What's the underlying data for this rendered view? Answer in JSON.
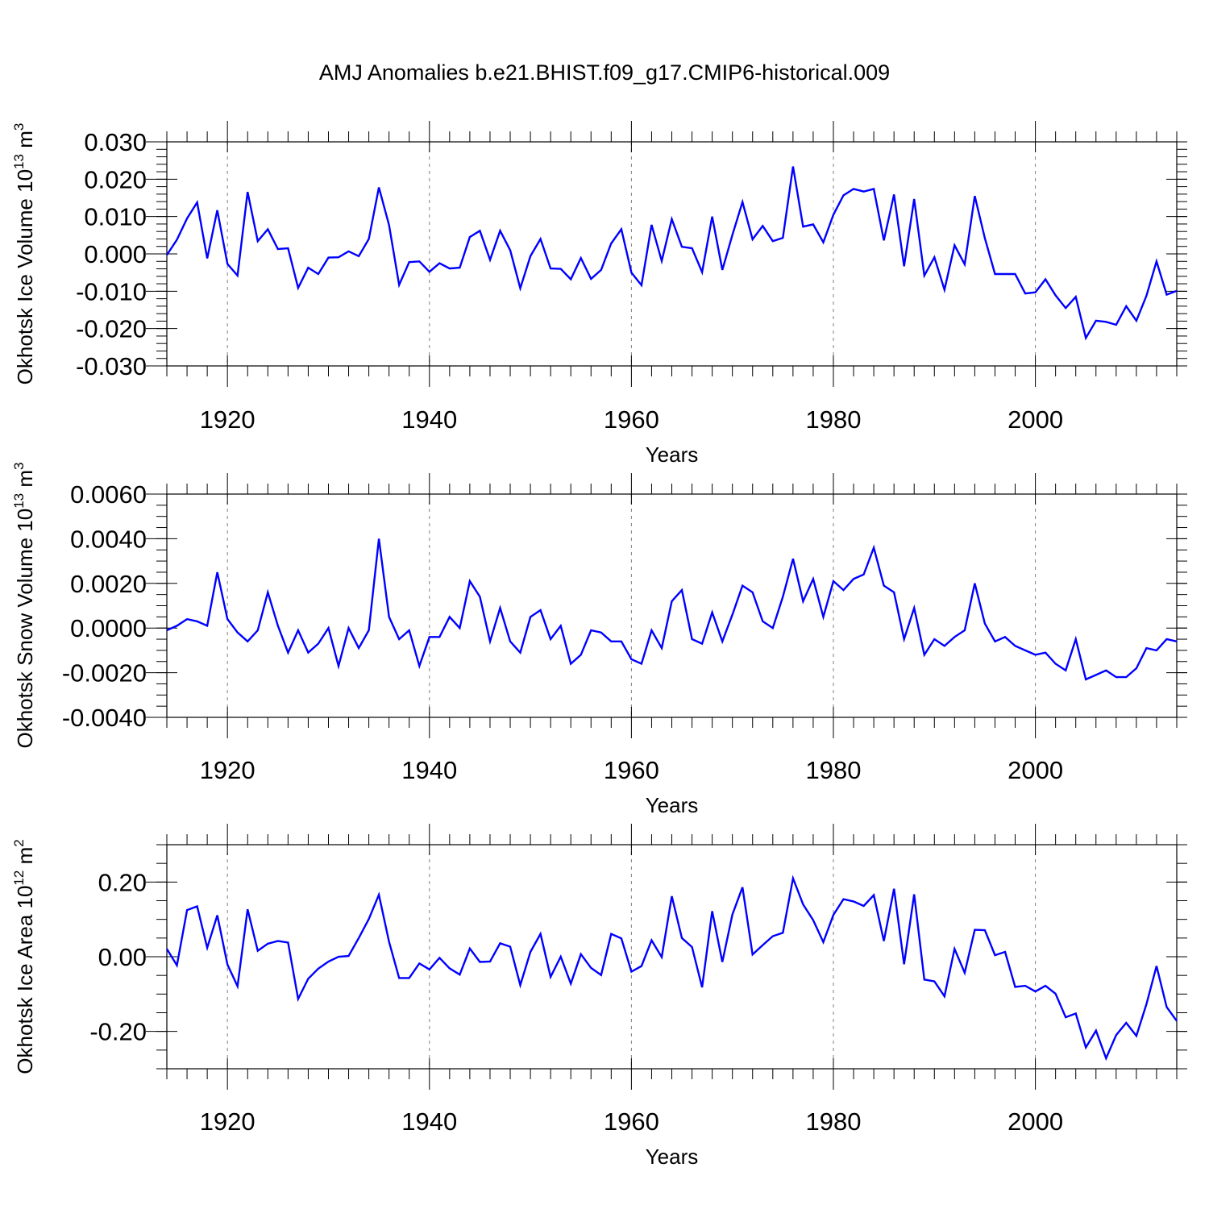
{
  "figure_title": "AMJ Anomalies b.e21.BHIST.f09_g17.CMIP6-historical.009",
  "chart_data": [
    {
      "type": "line",
      "title": "AMJ Anomalies b.e21.BHIST.f09_g17.CMIP6-historical.009",
      "xlabel": "Years",
      "ylabel": "Okhotsk Ice Volume 10",
      "ylabel_exp": "13",
      "ylabel_unit": " m",
      "ylabel_unit_exp": "3",
      "xlim": [
        1914,
        2014
      ],
      "ylim": [
        -0.03,
        0.03
      ],
      "yticks": [
        -0.03,
        -0.02,
        -0.01,
        0.0,
        0.01,
        0.02,
        0.03
      ],
      "ytick_labels": [
        "-0.030",
        "-0.020",
        "-0.010",
        "0.000",
        "0.010",
        "0.020",
        "0.030"
      ],
      "xticks": [
        1920,
        1940,
        1960,
        1980,
        2000
      ],
      "xtick_labels": [
        "1920",
        "1940",
        "1960",
        "1980",
        "2000"
      ],
      "grid": "vertical-dashed",
      "color": "#0000ff",
      "x_start": 1914,
      "values": [
        -0.0003,
        0.0038,
        0.0095,
        0.0138,
        -0.0012,
        0.0117,
        -0.0027,
        -0.0058,
        0.0166,
        0.0034,
        0.0066,
        0.0013,
        0.0015,
        -0.0091,
        -0.0037,
        -0.0054,
        -0.001,
        -0.0009,
        0.0007,
        -0.0006,
        0.004,
        0.0178,
        0.0077,
        -0.0083,
        -0.0022,
        -0.002,
        -0.0048,
        -0.0025,
        -0.0039,
        -0.0037,
        0.0045,
        0.0062,
        -0.0016,
        0.0062,
        0.001,
        -0.0092,
        -0.0006,
        0.004,
        -0.0039,
        -0.004,
        -0.0068,
        -0.0011,
        -0.0067,
        -0.0043,
        0.0028,
        0.0066,
        -0.005,
        -0.0084,
        0.0078,
        -0.0019,
        0.0093,
        0.0019,
        0.0015,
        -0.0049,
        0.01,
        -0.0043,
        0.0051,
        0.0139,
        0.0039,
        0.0075,
        0.0034,
        0.0043,
        0.0234,
        0.0073,
        0.0079,
        0.0031,
        0.0105,
        0.0157,
        0.0174,
        0.0167,
        0.0174,
        0.0036,
        0.0159,
        -0.0033,
        0.0147,
        -0.0058,
        -0.0009,
        -0.0096,
        0.0023,
        -0.0028,
        0.0155,
        0.0042,
        -0.0054,
        -0.0054,
        -0.0054,
        -0.0106,
        -0.0103,
        -0.0068,
        -0.0111,
        -0.0145,
        -0.0115,
        -0.0225,
        -0.0179,
        -0.0182,
        -0.019,
        -0.014,
        -0.0179,
        -0.0112,
        -0.002,
        -0.0109,
        -0.0099
      ]
    },
    {
      "type": "line",
      "xlabel": "Years",
      "ylabel": "Okhotsk Snow Volume 10",
      "ylabel_exp": "13",
      "ylabel_unit": " m",
      "ylabel_unit_exp": "3",
      "xlim": [
        1914,
        2014
      ],
      "ylim": [
        -0.004,
        0.006
      ],
      "yticks": [
        -0.004,
        -0.002,
        0.0,
        0.002,
        0.004,
        0.006
      ],
      "ytick_labels": [
        "-0.0040",
        "-0.0020",
        "0.0000",
        "0.0020",
        "0.0040",
        "0.0060"
      ],
      "xticks": [
        1920,
        1940,
        1960,
        1980,
        2000
      ],
      "xtick_labels": [
        "1920",
        "1940",
        "1960",
        "1980",
        "2000"
      ],
      "grid": "vertical-dashed",
      "color": "#0000ff",
      "x_start": 1914,
      "values": [
        -0.0001,
        0.0001,
        0.0004,
        0.0003,
        0.0001,
        0.0025,
        0.0004,
        -0.0002,
        -0.0006,
        -0.0001,
        0.0016,
        0.0001,
        -0.0011,
        -0.0001,
        -0.0011,
        -0.0007,
        -0.0,
        -0.0017,
        -0.0,
        -0.0009,
        -0.0001,
        0.004,
        0.0005,
        -0.0005,
        -0.0001,
        -0.0017,
        -0.0004,
        -0.0004,
        0.0005,
        -0.0,
        0.0021,
        0.0014,
        -0.0006,
        0.0009,
        -0.0006,
        -0.0011,
        0.0005,
        0.0008,
        -0.0005,
        0.0001,
        -0.0016,
        -0.0012,
        -0.0001,
        -0.0002,
        -0.0006,
        -0.0006,
        -0.0014,
        -0.0016,
        -0.0001,
        -0.0009,
        0.0012,
        0.0017,
        -0.0005,
        -0.0007,
        0.0007,
        -0.0006,
        0.0006,
        0.0019,
        0.0016,
        0.0003,
        -0.0,
        0.0014,
        0.0031,
        0.0012,
        0.0022,
        0.0005,
        0.0021,
        0.0017,
        0.0022,
        0.0024,
        0.0036,
        0.0019,
        0.0016,
        -0.0005,
        0.0009,
        -0.0012,
        -0.0005,
        -0.0008,
        -0.0004,
        -0.0001,
        0.002,
        0.0002,
        -0.0006,
        -0.0004,
        -0.0008,
        -0.001,
        -0.0012,
        -0.0011,
        -0.0016,
        -0.0019,
        -0.0005,
        -0.0023,
        -0.0021,
        -0.0019,
        -0.0022,
        -0.0022,
        -0.0018,
        -0.0009,
        -0.001,
        -0.0005,
        -0.0006
      ]
    },
    {
      "type": "line",
      "xlabel": "Years",
      "ylabel": "Okhotsk Ice Area 10",
      "ylabel_exp": "12",
      "ylabel_unit": " m",
      "ylabel_unit_exp": "2",
      "xlim": [
        1914,
        2014
      ],
      "ylim": [
        -0.3,
        0.3
      ],
      "yticks": [
        -0.2,
        0.0,
        0.2
      ],
      "ytick_labels": [
        "-0.20",
        "0.00",
        "0.20"
      ],
      "xticks": [
        1920,
        1940,
        1960,
        1980,
        2000
      ],
      "xtick_labels": [
        "1920",
        "1940",
        "1960",
        "1980",
        "2000"
      ],
      "grid": "vertical-dashed",
      "color": "#0000ff",
      "x_start": 1914,
      "values": [
        0.021,
        -0.023,
        0.125,
        0.135,
        0.024,
        0.111,
        -0.021,
        -0.079,
        0.127,
        0.016,
        0.035,
        0.042,
        0.038,
        -0.113,
        -0.059,
        -0.032,
        -0.013,
        0.0,
        0.002,
        0.05,
        0.101,
        0.166,
        0.04,
        -0.057,
        -0.057,
        -0.018,
        -0.034,
        -0.003,
        -0.031,
        -0.048,
        0.022,
        -0.014,
        -0.013,
        0.036,
        0.027,
        -0.076,
        0.013,
        0.061,
        -0.054,
        0.0,
        -0.072,
        0.007,
        -0.03,
        -0.049,
        0.061,
        0.049,
        -0.04,
        -0.025,
        0.044,
        -0.001,
        0.162,
        0.05,
        0.026,
        -0.082,
        0.122,
        -0.014,
        0.113,
        0.186,
        0.006,
        0.031,
        0.055,
        0.064,
        0.21,
        0.14,
        0.098,
        0.039,
        0.112,
        0.154,
        0.148,
        0.136,
        0.165,
        0.042,
        0.182,
        -0.02,
        0.167,
        -0.061,
        -0.066,
        -0.106,
        0.021,
        -0.043,
        0.072,
        0.071,
        0.004,
        0.013,
        -0.081,
        -0.078,
        -0.093,
        -0.078,
        -0.099,
        -0.162,
        -0.152,
        -0.243,
        -0.198,
        -0.272,
        -0.21,
        -0.177,
        -0.212,
        -0.127,
        -0.025,
        -0.135,
        -0.172
      ]
    }
  ]
}
